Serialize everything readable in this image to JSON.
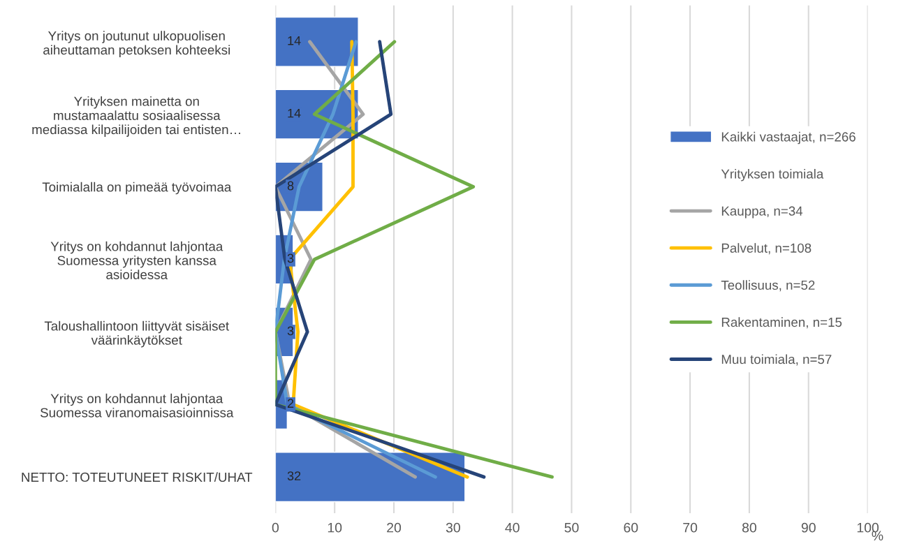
{
  "chart_data": {
    "type": "bar",
    "orientation": "horizontal",
    "categories": [
      "Yritys on joutunut ulkopuolisen\naiheuttaman petoksen kohteeksi",
      "Yrityksen mainetta on\nmustamaalattu sosiaalisessa\nmediassa kilpailijoiden tai entisten…",
      "Toimialalla on pimeää työvoimaa",
      "Yritys on kohdannut lahjontaa\nSuomessa yritysten kanssa\nasioidessa",
      "Taloushallintoon liittyvät sisäiset\nväärinkäytökset",
      "Yritys on kohdannut lahjontaa\nSuomessa viranomaisasioinnissa",
      "NETTO: TOTEUTUNEET RISKIT/UHAT"
    ],
    "series": [
      {
        "name": "Kaikki vastaajat, n=266",
        "color": "#4472c4",
        "values": [
          14,
          14,
          8,
          3,
          3,
          2,
          32
        ],
        "value_labels": [
          "14",
          "14",
          "8",
          "3",
          "3",
          "2",
          "32"
        ]
      },
      {
        "name": "Kauppa, n=34",
        "type": "line",
        "color": "#a5a5a5",
        "values": [
          5.8,
          14.8,
          0,
          6.0,
          0,
          2.4,
          23.6
        ]
      },
      {
        "name": "Palvelut, n=108",
        "type": "line",
        "color": "#ffc000",
        "values": [
          12.9,
          13.1,
          13.1,
          2.4,
          3.8,
          3.0,
          32.4
        ]
      },
      {
        "name": "Teollisuus, n=52",
        "type": "line",
        "color": "#5b9bd5",
        "values": [
          13.6,
          9.7,
          4.0,
          1.5,
          0,
          2.0,
          27.0
        ]
      },
      {
        "name": "Rakentaminen, n=15",
        "type": "line",
        "color": "#70ad47",
        "values": [
          20.1,
          6.6,
          33.4,
          6.6,
          0,
          0,
          46.7
        ]
      },
      {
        "name": "Muu toimiala, n=57",
        "type": "line",
        "color": "#264478",
        "values": [
          17.6,
          19.5,
          0,
          1.6,
          5.4,
          0,
          35.2
        ]
      }
    ],
    "legend_title": "Yrityksen toimiala",
    "xlabel": "%",
    "xlim": [
      0,
      100
    ],
    "xticks": [
      0,
      10,
      20,
      30,
      40,
      50,
      60,
      70,
      80,
      90,
      100
    ],
    "grid": "x",
    "legend": "right",
    "line_style": "solid",
    "marker": "none"
  }
}
